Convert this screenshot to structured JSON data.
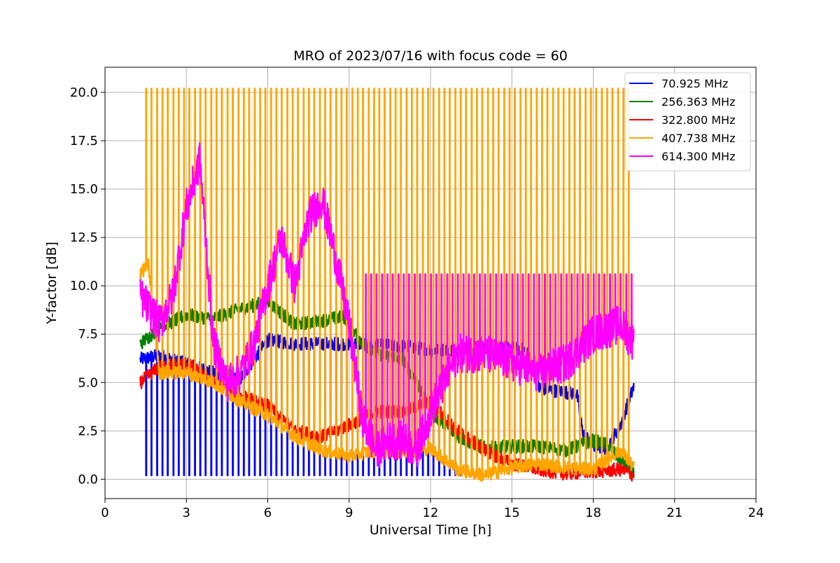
{
  "chart_data": {
    "type": "line",
    "title": "MRO of 2023/07/16 with focus code = 60",
    "xlabel": "Universal Time [h]",
    "ylabel": "Y-factor [dB]",
    "xlim": [
      0,
      24
    ],
    "ylim": [
      -1.0,
      21.3
    ],
    "xticks": [
      0,
      3,
      6,
      9,
      12,
      15,
      18,
      21,
      24
    ],
    "xtick_labels": [
      "0",
      "3",
      "6",
      "9",
      "12",
      "15",
      "18",
      "21",
      "24"
    ],
    "yticks": [
      0.0,
      2.5,
      5.0,
      7.5,
      10.0,
      12.5,
      15.0,
      17.5,
      20.0
    ],
    "ytick_labels": [
      "0.0",
      "2.5",
      "5.0",
      "7.5",
      "10.0",
      "12.5",
      "15.0",
      "17.5",
      "20.0"
    ],
    "grid": true,
    "legend_position": "top-right",
    "spike_period_h": 0.2,
    "series": [
      {
        "name": "  70.925 MHz",
        "color": "#0000ff",
        "x": [
          1.3,
          2,
          3,
          4,
          5,
          6,
          7,
          8,
          8.8,
          9.5,
          10,
          11,
          12,
          13,
          14,
          15,
          15.5,
          16,
          17,
          17.4,
          17.6,
          18,
          18.5,
          19,
          19.5
        ],
        "y": [
          6.2,
          6.4,
          6.0,
          5.5,
          5.2,
          7.2,
          7.0,
          7.0,
          7.0,
          7.0,
          6.9,
          6.9,
          6.7,
          6.7,
          6.8,
          6.8,
          6.7,
          4.7,
          4.5,
          4.4,
          2.5,
          1.7,
          1.6,
          2.8,
          4.8
        ],
        "spike_to": 0.2,
        "spike_range": [
          1.5,
          14
        ]
      },
      {
        "name": "256.363 MHz",
        "color": "#008000",
        "x": [
          1.3,
          2,
          3,
          4,
          5,
          6,
          7,
          8,
          8.8,
          9.5,
          10,
          11,
          11.5,
          12,
          13,
          14,
          15,
          16,
          17,
          18,
          18.5,
          19,
          19.5
        ],
        "y": [
          7.0,
          7.8,
          8.5,
          8.3,
          8.8,
          9.2,
          8.0,
          8.2,
          8.4,
          7.0,
          6.5,
          6.2,
          5.0,
          3.5,
          2.2,
          1.6,
          1.7,
          1.7,
          1.5,
          2.0,
          1.8,
          1.0,
          0.2
        ]
      },
      {
        "name": "322.800 MHz",
        "color": "#ff0000",
        "x": [
          1.3,
          2,
          3,
          4,
          5,
          6,
          7,
          8,
          9,
          10,
          11,
          12,
          13,
          14,
          15,
          16,
          17,
          18,
          19,
          19.5
        ],
        "y": [
          5.0,
          5.8,
          6.0,
          5.0,
          4.3,
          3.8,
          2.5,
          2.2,
          2.8,
          3.5,
          3.5,
          4.0,
          2.5,
          1.5,
          0.8,
          0.5,
          0.3,
          0.4,
          0.5,
          0.2
        ]
      },
      {
        "name": "407.738 MHz",
        "color": "#ffa500",
        "x": [
          1.3,
          1.6,
          2,
          3,
          4,
          5,
          6,
          7,
          8,
          9,
          10,
          11,
          12,
          13,
          14,
          15,
          16,
          17,
          18,
          19,
          19.5
        ],
        "y": [
          10.6,
          11.1,
          5.5,
          5.5,
          5.0,
          4.0,
          3.3,
          2.2,
          1.5,
          1.2,
          1.5,
          1.4,
          1.6,
          0.5,
          0.2,
          0.6,
          0.8,
          0.6,
          0.5,
          1.5,
          0.6
        ],
        "spike_to": 20.2,
        "spike_range": [
          1.5,
          19.5
        ]
      },
      {
        "name": "614.300 MHz",
        "color": "#ff00ff",
        "x": [
          1.3,
          2,
          2.5,
          3,
          3.5,
          4,
          4.5,
          5,
          5.5,
          6,
          6.5,
          7,
          7.5,
          8,
          8.5,
          9,
          9.5,
          10,
          10.5,
          11,
          11.5,
          12,
          12.5,
          13,
          14,
          15,
          16,
          17,
          18,
          19,
          19.5
        ],
        "y": [
          9.5,
          8.0,
          9.5,
          14.0,
          16.5,
          7.0,
          5.0,
          5.5,
          7.0,
          10.0,
          12.5,
          10.0,
          13.5,
          14.5,
          11.5,
          8.0,
          3.0,
          1.5,
          2.0,
          2.0,
          1.5,
          3.5,
          5.0,
          6.5,
          6.5,
          6.0,
          5.5,
          6.0,
          7.5,
          8.0,
          7.0
        ],
        "spike_to": 10.6,
        "spike_range": [
          9.6,
          19.5
        ]
      }
    ]
  }
}
